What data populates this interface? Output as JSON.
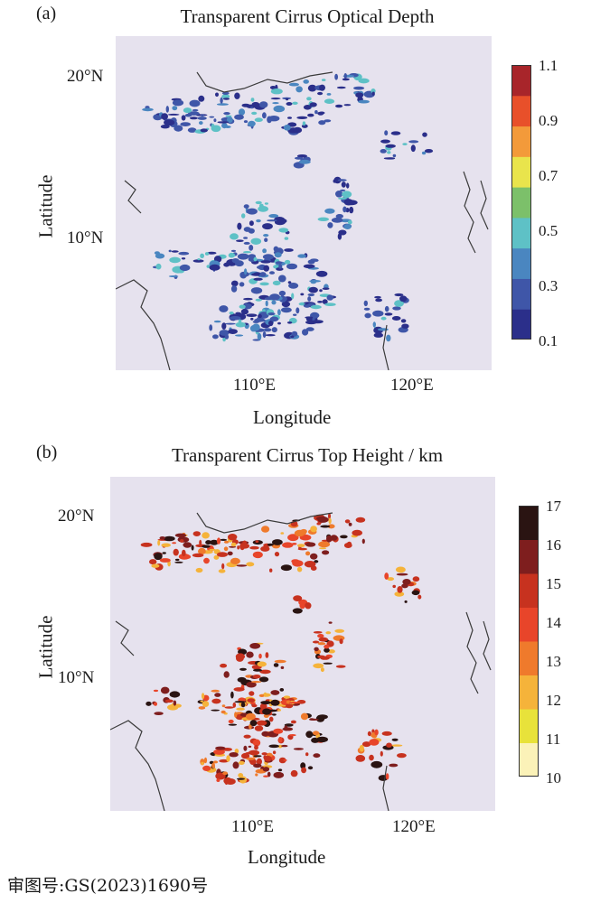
{
  "panels": [
    {
      "letter": "(a)",
      "title": "Transparent Cirrus Optical Depth",
      "xlabel": "Longitude",
      "ylabel": "Latitude",
      "lat_ticks": [
        "20°N",
        "10°N"
      ],
      "lon_ticks": [
        "110°E",
        "120°E"
      ],
      "colorbar": {
        "labels": [
          "1.1",
          "0.9",
          "0.7",
          "0.5",
          "0.3",
          "0.1"
        ],
        "colors": [
          "#2b2f8a",
          "#3f56a8",
          "#4a86c0",
          "#5ec1c6",
          "#7cc06a",
          "#e9e44c",
          "#f39a3a",
          "#e8502a",
          "#a8252a"
        ]
      }
    },
    {
      "letter": "(b)",
      "title": "Transparent Cirrus Top Height / km",
      "xlabel": "Longitude",
      "ylabel": "Latitude",
      "lat_ticks": [
        "20°N",
        "10°N"
      ],
      "lon_ticks": [
        "110°E",
        "120°E"
      ],
      "colorbar": {
        "labels": [
          "17",
          "16",
          "15",
          "14",
          "13",
          "12",
          "11",
          "10"
        ],
        "colors": [
          "#fbf2b8",
          "#e8e23a",
          "#f5b33a",
          "#ef7a2c",
          "#e8452a",
          "#c7321f",
          "#7e1e1e",
          "#2a1412"
        ]
      }
    }
  ],
  "footer": "审图号:GS(2023)1690号"
}
